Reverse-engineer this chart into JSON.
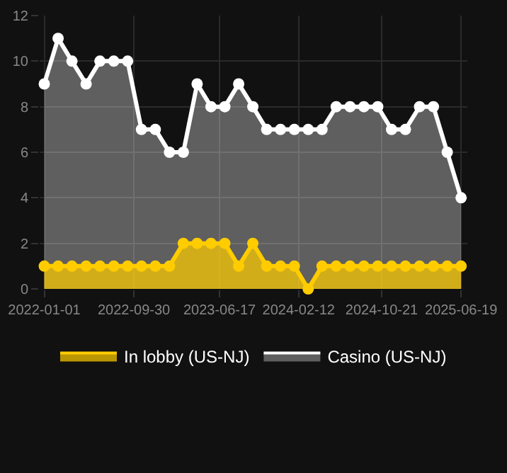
{
  "chart_data": {
    "type": "area",
    "x": [
      "2022-01-01",
      "2022-02-12",
      "2022-03-26",
      "2022-05-08",
      "2022-06-19",
      "2022-07-31",
      "2022-09-11",
      "2022-10-23",
      "2022-12-04",
      "2023-01-16",
      "2023-02-27",
      "2023-04-10",
      "2023-05-22",
      "2023-07-03",
      "2023-08-14",
      "2023-09-26",
      "2023-11-07",
      "2023-12-19",
      "2024-01-30",
      "2024-03-12",
      "2024-04-23",
      "2024-06-05",
      "2024-07-17",
      "2024-08-28",
      "2024-10-09",
      "2024-11-20",
      "2025-01-01",
      "2025-02-13",
      "2025-03-27",
      "2025-05-08",
      "2025-06-19"
    ],
    "series": [
      {
        "name": "In lobby (US-NJ)",
        "color": "#ffcc00",
        "values": [
          1,
          1,
          1,
          1,
          1,
          1,
          1,
          1,
          1,
          1,
          2,
          2,
          2,
          2,
          1,
          2,
          1,
          1,
          1,
          0,
          1,
          1,
          1,
          1,
          1,
          1,
          1,
          1,
          1,
          1,
          1
        ]
      },
      {
        "name": "Casino (US-NJ)",
        "color": "#ffffff",
        "values": [
          9,
          11,
          10,
          9,
          10,
          10,
          10,
          7,
          7,
          6,
          6,
          9,
          8,
          8,
          9,
          8,
          7,
          7,
          7,
          7,
          7,
          8,
          8,
          8,
          8,
          7,
          7,
          8,
          8,
          6,
          4
        ]
      }
    ],
    "xlim": [
      "2021-12-18",
      "2025-07-08"
    ],
    "xticks": [
      {
        "value": "2022-01-01",
        "label": "2022-01-01"
      },
      {
        "value": "2022-09-30",
        "label": "2022-09-30"
      },
      {
        "value": "2023-06-17",
        "label": "2023-06-17"
      },
      {
        "value": "2024-02-12",
        "label": "2024-02-12"
      },
      {
        "value": "2024-10-21",
        "label": "2024-10-21"
      },
      {
        "value": "2025-06-19",
        "label": "2025-06-19"
      }
    ],
    "ylim": [
      0,
      12
    ],
    "yticks": [
      0,
      2,
      4,
      6,
      8,
      10,
      12
    ],
    "grid": true,
    "legend": "bottom",
    "marker": "circle",
    "line_style": "solid"
  }
}
